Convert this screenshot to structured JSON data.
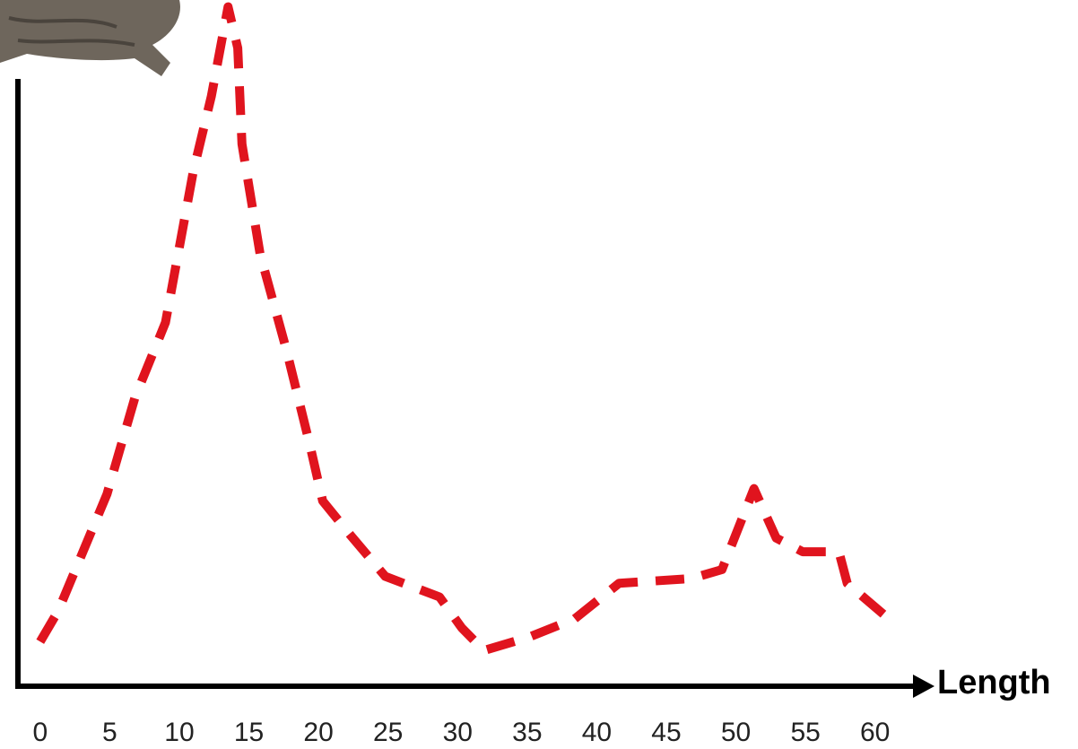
{
  "chart_data": {
    "type": "line",
    "x_label": "Length",
    "x": [
      0,
      1.3,
      4.8,
      6.8,
      9,
      11,
      12.3,
      13.5,
      14.2,
      14.5,
      15.8,
      17.7,
      19.4,
      20.3,
      22.3,
      24.8,
      28.7,
      30.3,
      31.9,
      35.2,
      38.4,
      41.6,
      46.8,
      49,
      51.3,
      52.9,
      54.8,
      57.4,
      58,
      60.6
    ],
    "values": [
      6.5,
      11,
      28,
      42,
      53,
      75,
      86,
      99,
      93,
      79,
      63,
      49,
      35,
      27,
      22,
      16,
      13,
      8.5,
      5.2,
      7.2,
      9.8,
      15,
      15.7,
      17,
      28.8,
      21.6,
      19.6,
      19.6,
      15,
      10.5
    ],
    "color": "#e0141e",
    "line_style": "dashed",
    "xlim": [
      -1.6,
      63.5
    ],
    "xticks": [
      0,
      5,
      10,
      15,
      20,
      25,
      30,
      35,
      40,
      45,
      50,
      55,
      60
    ],
    "ylim": [
      0,
      100
    ]
  }
}
